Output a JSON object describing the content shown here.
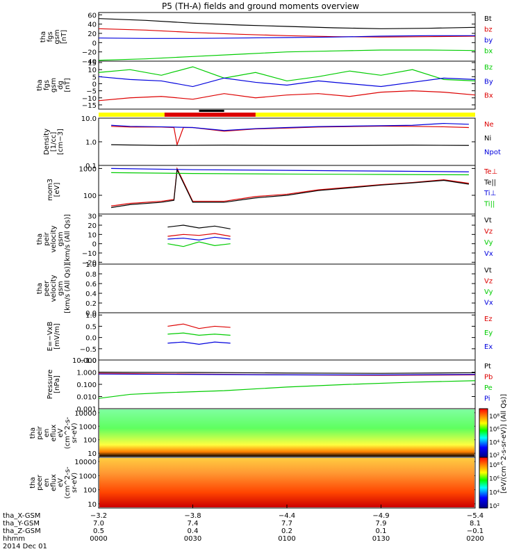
{
  "title": "P5 (TH-A) fields and ground moments overview",
  "colors": {
    "black": "#000000",
    "red": "#dd0000",
    "green": "#00cc00",
    "blue": "#0000dd",
    "yellow": "#ffff00"
  },
  "chart_data": [
    {
      "type": "line",
      "id": "fgs_gsm",
      "ylabel": [
        "tha",
        "fgs",
        "gsm",
        "[nT]"
      ],
      "ylim": [
        -40,
        65
      ],
      "yticks": [
        "60",
        "40",
        "20",
        "0",
        "−20",
        "−40"
      ],
      "ytick_values": [
        60,
        40,
        20,
        0,
        -20,
        -40
      ],
      "series": [
        {
          "name": "Bt",
          "color": "black",
          "x": [
            0,
            15,
            30,
            45,
            60,
            75,
            90,
            105,
            120
          ],
          "y": [
            52,
            48,
            42,
            38,
            35,
            32,
            30,
            31,
            33
          ]
        },
        {
          "name": "bz",
          "color": "red",
          "x": [
            0,
            15,
            30,
            45,
            60,
            75,
            90,
            105,
            120
          ],
          "y": [
            30,
            27,
            22,
            18,
            15,
            13,
            12,
            13,
            14
          ]
        },
        {
          "name": "by",
          "color": "blue",
          "x": [
            0,
            15,
            30,
            45,
            60,
            75,
            90,
            105,
            120
          ],
          "y": [
            10,
            9,
            9,
            10,
            11,
            12,
            14,
            15,
            15
          ]
        },
        {
          "name": "bx",
          "color": "green",
          "x": [
            0,
            15,
            30,
            45,
            60,
            75,
            90,
            105,
            120
          ],
          "y": [
            -38,
            -35,
            -30,
            -25,
            -20,
            -18,
            -16,
            -16,
            -17
          ]
        }
      ]
    },
    {
      "type": "line",
      "id": "fgs_gsm_dg",
      "ylabel": [
        "tha",
        "fgs",
        "gsm",
        "dg",
        "[nT]"
      ],
      "ylim": [
        -18,
        16
      ],
      "yticks": [
        "15",
        "10",
        "5",
        "0",
        "−5",
        "−10",
        "−15"
      ],
      "ytick_values": [
        15,
        10,
        5,
        0,
        -5,
        -10,
        -15
      ],
      "series": [
        {
          "name": "Bz",
          "color": "green",
          "x": [
            0,
            10,
            20,
            30,
            40,
            50,
            60,
            70,
            80,
            90,
            100,
            110,
            120
          ],
          "y": [
            8,
            10,
            6,
            12,
            4,
            8,
            2,
            5,
            9,
            6,
            10,
            3,
            2
          ]
        },
        {
          "name": "By",
          "color": "blue",
          "x": [
            0,
            10,
            20,
            30,
            40,
            50,
            60,
            70,
            80,
            90,
            100,
            110,
            120
          ],
          "y": [
            5,
            3,
            2,
            -2,
            4,
            1,
            -1,
            2,
            0,
            -2,
            1,
            4,
            3
          ]
        },
        {
          "name": "Bx",
          "color": "red",
          "x": [
            0,
            10,
            20,
            30,
            40,
            50,
            60,
            70,
            80,
            90,
            100,
            110,
            120
          ],
          "y": [
            -12,
            -10,
            -9,
            -11,
            -7,
            -10,
            -8,
            -7,
            -9,
            -6,
            -5,
            -6,
            -8
          ]
        }
      ]
    },
    {
      "type": "line",
      "id": "density",
      "ylabel": [
        "Density",
        "[1/cc]",
        "[cm−3]"
      ],
      "log": true,
      "ylim": [
        0.1,
        10
      ],
      "yticks": [
        "10.0",
        "1.0",
        "0.1"
      ],
      "ytick_values": [
        10,
        1,
        0.1
      ],
      "series": [
        {
          "name": "Ne",
          "color": "red",
          "x": [
            4,
            10,
            20,
            24,
            25,
            27,
            30,
            40,
            50,
            60,
            70,
            80,
            90,
            100,
            110,
            118
          ],
          "y": [
            4.5,
            4.2,
            4.2,
            4.0,
            0.75,
            4.0,
            4.0,
            2.8,
            3.5,
            3.8,
            4.2,
            4.4,
            4.6,
            4.5,
            4.3,
            4.0
          ]
        },
        {
          "name": "Ni",
          "color": "black",
          "x": [
            4,
            20,
            40,
            60,
            80,
            100,
            118
          ],
          "y": [
            0.75,
            0.7,
            0.72,
            0.7,
            0.7,
            0.72,
            0.7
          ]
        },
        {
          "name": "Npot",
          "color": "blue",
          "x": [
            4,
            10,
            20,
            30,
            40,
            50,
            60,
            70,
            80,
            90,
            100,
            110,
            118
          ],
          "y": [
            5.0,
            4.5,
            4.3,
            4.0,
            3.0,
            3.6,
            4.0,
            4.4,
            4.6,
            4.8,
            5.0,
            6.0,
            5.5
          ]
        }
      ]
    },
    {
      "type": "line",
      "id": "temperature",
      "ylabel": [
        "mom3",
        "[eV]"
      ],
      "log": true,
      "ylim": [
        20,
        1300
      ],
      "yticks": [
        "1000",
        "100"
      ],
      "ytick_values": [
        1000,
        100
      ],
      "series": [
        {
          "name": "Te⊥",
          "color": "red",
          "x": [
            4,
            10,
            20,
            24,
            25,
            30,
            40,
            50,
            60,
            70,
            80,
            90,
            100,
            110,
            118
          ],
          "y": [
            40,
            50,
            60,
            70,
            1000,
            60,
            60,
            90,
            110,
            160,
            200,
            250,
            300,
            380,
            280
          ]
        },
        {
          "name": "Te||",
          "color": "black",
          "x": [
            4,
            10,
            20,
            24,
            25,
            30,
            40,
            50,
            60,
            70,
            80,
            90,
            100,
            110,
            118
          ],
          "y": [
            35,
            45,
            55,
            65,
            900,
            55,
            55,
            80,
            100,
            150,
            190,
            240,
            290,
            360,
            260
          ]
        },
        {
          "name": "Ti⊥",
          "color": "blue",
          "x": [
            4,
            30,
            60,
            90,
            118
          ],
          "y": [
            1000,
            900,
            850,
            800,
            750
          ]
        },
        {
          "name": "Ti||",
          "color": "green",
          "x": [
            4,
            30,
            60,
            90,
            118
          ],
          "y": [
            700,
            650,
            620,
            600,
            580
          ]
        }
      ]
    },
    {
      "type": "line",
      "id": "peir_velocity",
      "ylabel": [
        "tha",
        "peir",
        "velocity",
        "gsm",
        "[km/s (All Qs)]"
      ],
      "ylim": [
        -22,
        32
      ],
      "yticks": [
        "30",
        "20",
        "10",
        "0",
        "−10",
        "−20"
      ],
      "ytick_values": [
        30,
        20,
        10,
        0,
        -10,
        -20
      ],
      "series": [
        {
          "name": "Vt",
          "color": "black",
          "x": [
            22,
            27,
            32,
            37,
            42
          ],
          "y": [
            18,
            20,
            17,
            19,
            16
          ]
        },
        {
          "name": "Vz",
          "color": "red",
          "x": [
            22,
            27,
            32,
            37,
            42
          ],
          "y": [
            8,
            10,
            9,
            11,
            8
          ]
        },
        {
          "name": "Vy",
          "color": "green",
          "x": [
            22,
            27,
            32,
            37,
            42
          ],
          "y": [
            0,
            -3,
            2,
            -2,
            0
          ]
        },
        {
          "name": "Vx",
          "color": "blue",
          "x": [
            22,
            27,
            32,
            37,
            42
          ],
          "y": [
            5,
            6,
            4,
            7,
            5
          ]
        }
      ]
    },
    {
      "type": "line",
      "id": "peer_velocity",
      "ylabel": [
        "tha",
        "peer",
        "velocity",
        "gsm",
        "[km/s (All Qs)]"
      ],
      "ylim": [
        0,
        1
      ],
      "yticks": [
        "1.0",
        "0.8",
        "0.6",
        "0.4",
        "0.2",
        "0.0"
      ],
      "ytick_values": [
        1,
        0.8,
        0.6,
        0.4,
        0.2,
        0
      ],
      "series": [
        {
          "name": "Vt",
          "color": "black",
          "x": [],
          "y": []
        },
        {
          "name": "Vz",
          "color": "red",
          "x": [],
          "y": []
        },
        {
          "name": "Vy",
          "color": "green",
          "x": [],
          "y": []
        },
        {
          "name": "Vx",
          "color": "blue",
          "x": [],
          "y": []
        }
      ]
    },
    {
      "type": "line",
      "id": "efield",
      "ylabel": [
        "E=−VxB",
        "[mV/m]"
      ],
      "ylim": [
        -1,
        1.1
      ],
      "yticks": [
        "1.0",
        "0.5",
        "0.0",
        "−0.5",
        "−1.0"
      ],
      "ytick_values": [
        1,
        0.5,
        0,
        -0.5,
        -1
      ],
      "series": [
        {
          "name": "Ez",
          "color": "red",
          "x": [
            22,
            27,
            32,
            37,
            42
          ],
          "y": [
            0.5,
            0.6,
            0.4,
            0.5,
            0.45
          ]
        },
        {
          "name": "Ey",
          "color": "green",
          "x": [
            22,
            27,
            32,
            37,
            42
          ],
          "y": [
            0.15,
            0.2,
            0.1,
            0.15,
            0.1
          ]
        },
        {
          "name": "Ex",
          "color": "blue",
          "x": [
            22,
            27,
            32,
            37,
            42
          ],
          "y": [
            -0.25,
            -0.2,
            -0.3,
            -0.2,
            -0.25
          ]
        }
      ]
    },
    {
      "type": "line",
      "id": "pressure",
      "ylabel": [
        "Pressure",
        "[nPa]"
      ],
      "log": true,
      "ylim": [
        0.001,
        10
      ],
      "yticks": [
        "10.000",
        "1.000",
        "0.100",
        "0.010",
        "0.001"
      ],
      "ytick_values": [
        10,
        1,
        0.1,
        0.01,
        0.001
      ],
      "series": [
        {
          "name": "Pt",
          "color": "black",
          "x": [
            0,
            30,
            60,
            90,
            120
          ],
          "y": [
            1.0,
            0.95,
            0.85,
            0.8,
            0.9
          ]
        },
        {
          "name": "Pb",
          "color": "red",
          "x": [
            0,
            30,
            60,
            90,
            120
          ],
          "y": [
            0.8,
            0.7,
            0.6,
            0.55,
            0.6
          ]
        },
        {
          "name": "Pe",
          "color": "green",
          "x": [
            0,
            10,
            20,
            40,
            60,
            80,
            100,
            120
          ],
          "y": [
            0.007,
            0.015,
            0.02,
            0.03,
            0.06,
            0.1,
            0.15,
            0.2
          ]
        },
        {
          "name": "Pi",
          "color": "blue",
          "x": [
            0,
            30,
            60,
            90,
            120
          ],
          "y": [
            0.7,
            0.65,
            0.6,
            0.6,
            0.65
          ]
        }
      ]
    },
    {
      "type": "heatmap",
      "id": "peir_spec",
      "ylabel": [
        "tha",
        "peir",
        "en",
        "eflux",
        "eV",
        "(cm^2-s-",
        "sr-eV)"
      ],
      "log": true,
      "ylim": [
        5,
        20000
      ],
      "yticks": [
        "10000",
        "1000",
        "100",
        "10"
      ],
      "ytick_values": [
        10000,
        1000,
        100,
        10
      ]
    },
    {
      "type": "heatmap",
      "id": "peer_spec",
      "ylabel": [
        "tha",
        "peer",
        "en",
        "eflux",
        "eV",
        "(cm^2-s-",
        "sr-eV)"
      ],
      "log": true,
      "ylim": [
        5,
        20000
      ],
      "yticks": [
        "10000",
        "1000",
        "100",
        "10"
      ],
      "ytick_values": [
        10000,
        1000,
        100,
        10
      ]
    }
  ],
  "colorbars": [
    {
      "ticks": [
        "10⁸",
        "10⁶",
        "10⁴",
        "10²"
      ]
    },
    {
      "ticks": [
        "10⁸",
        "10⁶",
        "10⁴",
        "10²"
      ]
    }
  ],
  "colorbar_label": "[eV/(cm^2-s-sr-eV)] (All Qs)]",
  "time_axis": {
    "row_labels": [
      "tha_X-GSM",
      "tha_Y-GSM",
      "tha_Z-GSM",
      "hhmm",
      "2014 Dec 01"
    ],
    "ticks": [
      {
        "x": [
          "−3.2",
          "7.0",
          "0.5",
          "0000"
        ]
      },
      {
        "x": [
          "−3.8",
          "7.4",
          "0.4",
          "0030"
        ]
      },
      {
        "x": [
          "−4.4",
          "7.7",
          "0.2",
          "0100"
        ]
      },
      {
        "x": [
          "−4.9",
          "7.9",
          "0.1",
          "0130"
        ]
      },
      {
        "x": [
          "−5.4",
          "8.1",
          "−0.1",
          "0200"
        ]
      }
    ]
  }
}
